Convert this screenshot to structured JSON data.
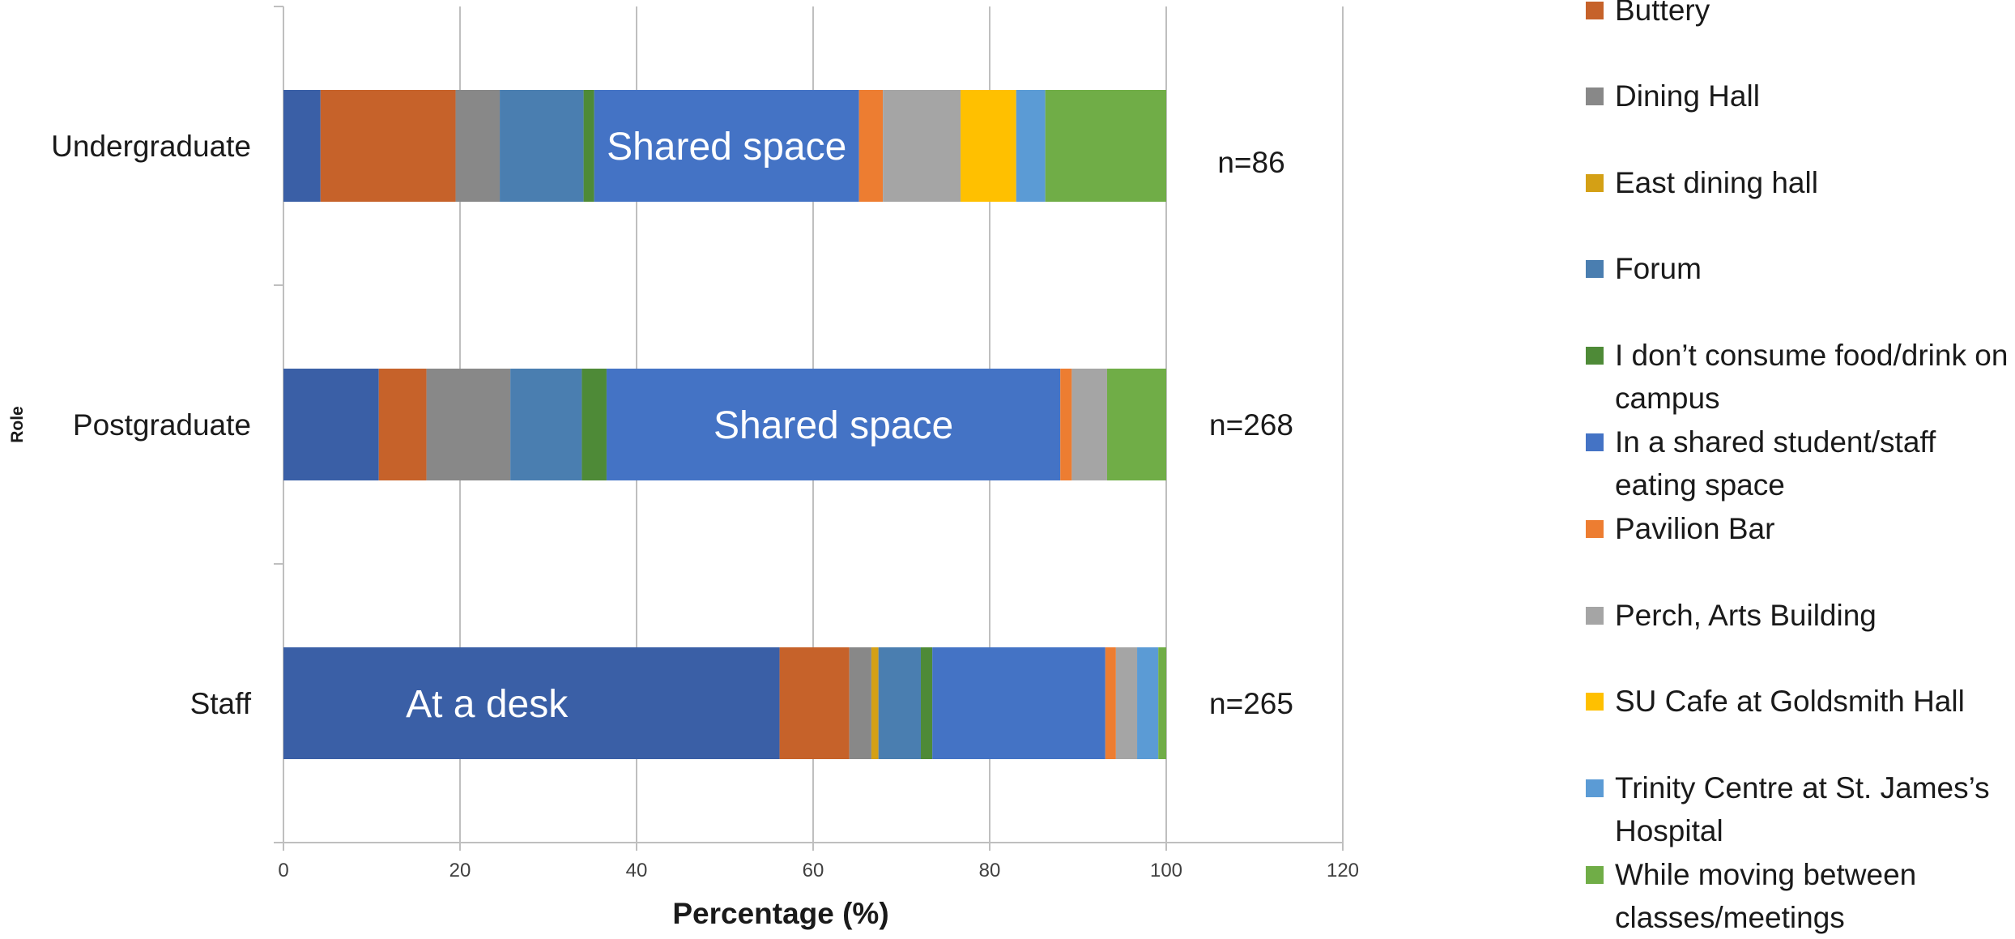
{
  "chart_data": {
    "type": "bar",
    "orientation": "horizontal",
    "stacked": true,
    "title": "",
    "xlabel": "Percentage (%)",
    "ylabel": "Role",
    "xlim": [
      0,
      120
    ],
    "x_ticks": [
      "0",
      "20",
      "40",
      "60",
      "80",
      "100",
      "120"
    ],
    "grid": "vertical",
    "legend_position": "right",
    "categories": [
      "Undergraduate",
      "Postgraduate",
      "Staff"
    ],
    "n_labels": [
      "n=86",
      "n=268",
      "n=265"
    ],
    "series": [
      {
        "name": "At a desk",
        "color": "#3a5fa6",
        "values": [
          4.2,
          10.8,
          56.2
        ]
      },
      {
        "name": "Buttery",
        "color": "#c6622a",
        "values": [
          15.3,
          5.4,
          7.9
        ]
      },
      {
        "name": "Dining Hall",
        "color": "#888888",
        "values": [
          5.0,
          9.5,
          2.5
        ]
      },
      {
        "name": "East dining hall",
        "color": "#d4a015",
        "values": [
          0,
          0,
          0.8
        ]
      },
      {
        "name": "Forum",
        "color": "#4a7eb0",
        "values": [
          9.5,
          8.1,
          4.8
        ]
      },
      {
        "name": "I don’t consume food/drink on campus",
        "color": "#4e8a37",
        "values": [
          1.2,
          2.8,
          1.3
        ]
      },
      {
        "name": "In a shared student/staff eating space",
        "color": "#4473c5",
        "values": [
          30.0,
          51.4,
          19.6
        ]
      },
      {
        "name": "Pavilion Bar",
        "color": "#ed7d31",
        "values": [
          2.7,
          1.3,
          1.2
        ]
      },
      {
        "name": "Perch, Arts Building",
        "color": "#a5a5a5",
        "values": [
          8.8,
          4.0,
          2.4
        ]
      },
      {
        "name": "SU Cafe at Goldsmith Hall",
        "color": "#ffc000",
        "values": [
          6.3,
          0,
          0
        ]
      },
      {
        "name": "Trinity Centre at St. James’s Hospital",
        "color": "#5b9bd5",
        "values": [
          3.3,
          0,
          2.4
        ]
      },
      {
        "name": "While moving between classes/meetings",
        "color": "#70ad47",
        "values": [
          13.7,
          6.7,
          0.9
        ]
      }
    ],
    "annotations": [
      {
        "category": "Undergraduate",
        "series": "In a shared student/staff eating space",
        "text": "Shared space"
      },
      {
        "category": "Postgraduate",
        "series": "In a shared student/staff eating space",
        "text": "Shared space"
      },
      {
        "category": "Staff",
        "series": "At a desk",
        "text": "At a desk"
      }
    ]
  },
  "legend": {
    "items": [
      {
        "label": "Buttery",
        "color": "#c6622a"
      },
      {
        "label": "Dining Hall",
        "color": "#888888"
      },
      {
        "label": "East dining hall",
        "color": "#d4a015"
      },
      {
        "label": "Forum",
        "color": "#4a7eb0"
      },
      {
        "label": "I don’t consume food/drink on campus",
        "color": "#4e8a37"
      },
      {
        "label": "In a shared student/staff eating space",
        "color": "#4473c5"
      },
      {
        "label": "Pavilion Bar",
        "color": "#ed7d31"
      },
      {
        "label": "Perch, Arts Building",
        "color": "#a5a5a5"
      },
      {
        "label": "SU Cafe at Goldsmith Hall",
        "color": "#ffc000"
      },
      {
        "label": "Trinity Centre at St. James’s Hospital",
        "color": "#5b9bd5"
      },
      {
        "label": "While moving between classes/meetings",
        "color": "#70ad47"
      }
    ]
  }
}
